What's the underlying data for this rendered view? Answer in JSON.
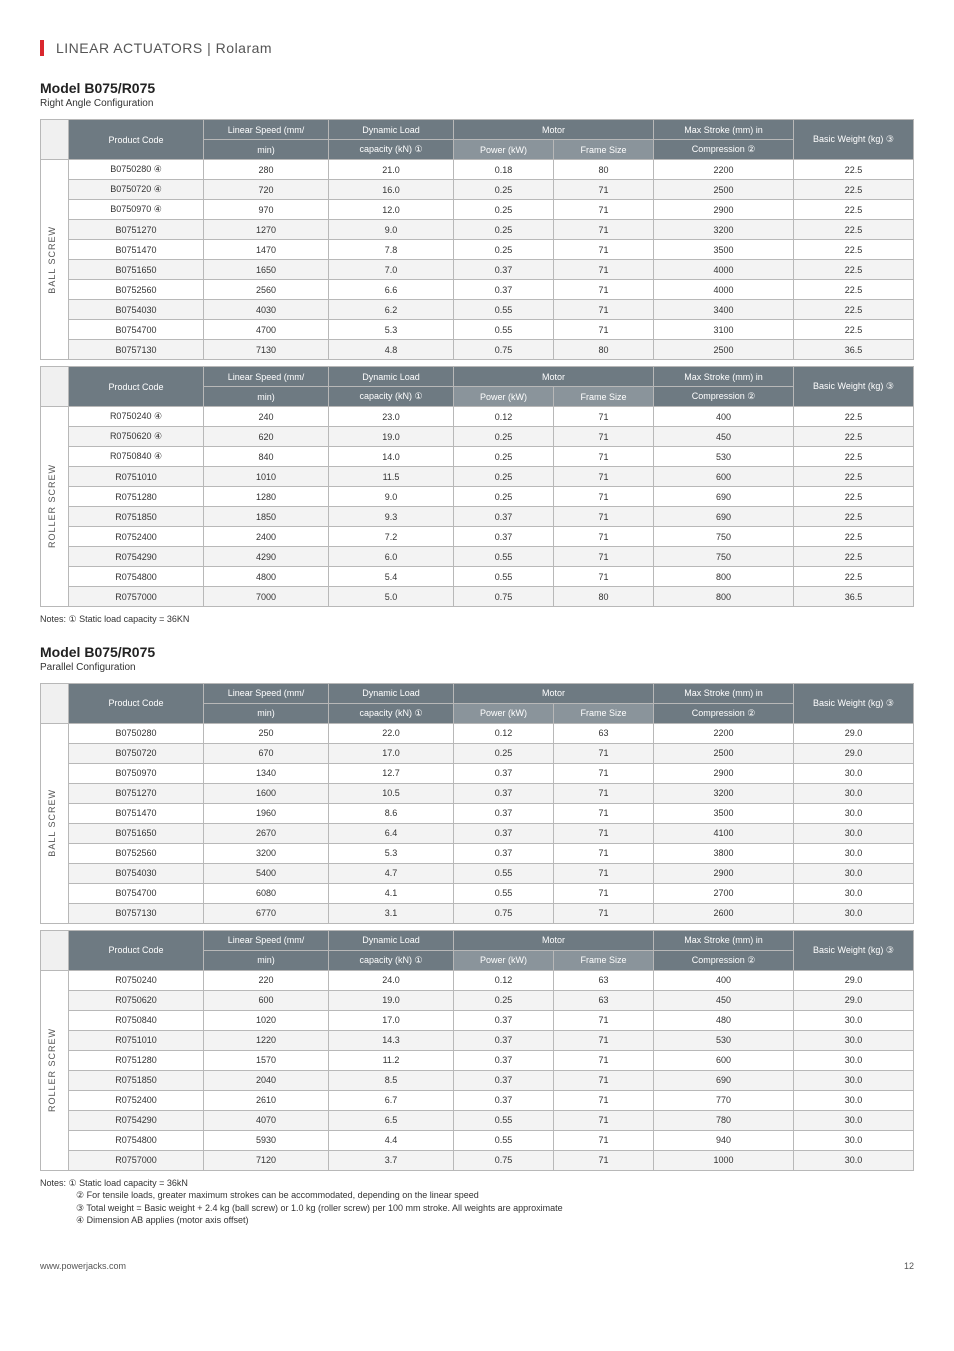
{
  "breadcrumb": {
    "l1": "LINEAR ACTUATORS",
    "sep": " | ",
    "l2": "Rolaram"
  },
  "sections": [
    {
      "title": "Model B075/R075",
      "sub": "Right Angle Configuration",
      "tables": [
        {
          "vlabel": "BALL SCREW",
          "rows": [
            [
              "B0750280 ④",
              "280",
              "21.0",
              "0.18",
              "80",
              "2200",
              "22.5"
            ],
            [
              "B0750720 ④",
              "720",
              "16.0",
              "0.25",
              "71",
              "2500",
              "22.5"
            ],
            [
              "B0750970 ④",
              "970",
              "12.0",
              "0.25",
              "71",
              "2900",
              "22.5"
            ],
            [
              "B0751270",
              "1270",
              "9.0",
              "0.25",
              "71",
              "3200",
              "22.5"
            ],
            [
              "B0751470",
              "1470",
              "7.8",
              "0.25",
              "71",
              "3500",
              "22.5"
            ],
            [
              "B0751650",
              "1650",
              "7.0",
              "0.37",
              "71",
              "4000",
              "22.5"
            ],
            [
              "B0752560",
              "2560",
              "6.6",
              "0.37",
              "71",
              "4000",
              "22.5"
            ],
            [
              "B0754030",
              "4030",
              "6.2",
              "0.55",
              "71",
              "3400",
              "22.5"
            ],
            [
              "B0754700",
              "4700",
              "5.3",
              "0.55",
              "71",
              "3100",
              "22.5"
            ],
            [
              "B0757130",
              "7130",
              "4.8",
              "0.75",
              "80",
              "2500",
              "36.5"
            ]
          ]
        },
        {
          "vlabel": "ROLLER SCREW",
          "rows": [
            [
              "R0750240 ④",
              "240",
              "23.0",
              "0.12",
              "71",
              "400",
              "22.5"
            ],
            [
              "R0750620 ④",
              "620",
              "19.0",
              "0.25",
              "71",
              "450",
              "22.5"
            ],
            [
              "R0750840 ④",
              "840",
              "14.0",
              "0.25",
              "71",
              "530",
              "22.5"
            ],
            [
              "R0751010",
              "1010",
              "11.5",
              "0.25",
              "71",
              "600",
              "22.5"
            ],
            [
              "R0751280",
              "1280",
              "9.0",
              "0.25",
              "71",
              "690",
              "22.5"
            ],
            [
              "R0751850",
              "1850",
              "9.3",
              "0.37",
              "71",
              "690",
              "22.5"
            ],
            [
              "R0752400",
              "2400",
              "7.2",
              "0.37",
              "71",
              "750",
              "22.5"
            ],
            [
              "R0754290",
              "4290",
              "6.0",
              "0.55",
              "71",
              "750",
              "22.5"
            ],
            [
              "R0754800",
              "4800",
              "5.4",
              "0.55",
              "71",
              "800",
              "22.5"
            ],
            [
              "R0757000",
              "7000",
              "5.0",
              "0.75",
              "80",
              "800",
              "36.5"
            ]
          ]
        }
      ],
      "notes": [
        "Notes:  ① Static load capacity = 36KN"
      ]
    },
    {
      "title": "Model B075/R075",
      "sub": "Parallel Configuration",
      "tables": [
        {
          "vlabel": "BALL SCREW",
          "rows": [
            [
              "B0750280",
              "250",
              "22.0",
              "0.12",
              "63",
              "2200",
              "29.0"
            ],
            [
              "B0750720",
              "670",
              "17.0",
              "0.25",
              "71",
              "2500",
              "29.0"
            ],
            [
              "B0750970",
              "1340",
              "12.7",
              "0.37",
              "71",
              "2900",
              "30.0"
            ],
            [
              "B0751270",
              "1600",
              "10.5",
              "0.37",
              "71",
              "3200",
              "30.0"
            ],
            [
              "B0751470",
              "1960",
              "8.6",
              "0.37",
              "71",
              "3500",
              "30.0"
            ],
            [
              "B0751650",
              "2670",
              "6.4",
              "0.37",
              "71",
              "4100",
              "30.0"
            ],
            [
              "B0752560",
              "3200",
              "5.3",
              "0.37",
              "71",
              "3800",
              "30.0"
            ],
            [
              "B0754030",
              "5400",
              "4.7",
              "0.55",
              "71",
              "2900",
              "30.0"
            ],
            [
              "B0754700",
              "6080",
              "4.1",
              "0.55",
              "71",
              "2700",
              "30.0"
            ],
            [
              "B0757130",
              "6770",
              "3.1",
              "0.75",
              "71",
              "2600",
              "30.0"
            ]
          ]
        },
        {
          "vlabel": "ROLLER SCREW",
          "rows": [
            [
              "R0750240",
              "220",
              "24.0",
              "0.12",
              "63",
              "400",
              "29.0"
            ],
            [
              "R0750620",
              "600",
              "19.0",
              "0.25",
              "63",
              "450",
              "29.0"
            ],
            [
              "R0750840",
              "1020",
              "17.0",
              "0.37",
              "71",
              "480",
              "30.0"
            ],
            [
              "R0751010",
              "1220",
              "14.3",
              "0.37",
              "71",
              "530",
              "30.0"
            ],
            [
              "R0751280",
              "1570",
              "11.2",
              "0.37",
              "71",
              "600",
              "30.0"
            ],
            [
              "R0751850",
              "2040",
              "8.5",
              "0.37",
              "71",
              "690",
              "30.0"
            ],
            [
              "R0752400",
              "2610",
              "6.7",
              "0.37",
              "71",
              "770",
              "30.0"
            ],
            [
              "R0754290",
              "4070",
              "6.5",
              "0.55",
              "71",
              "780",
              "30.0"
            ],
            [
              "R0754800",
              "5930",
              "4.4",
              "0.55",
              "71",
              "940",
              "30.0"
            ],
            [
              "R0757000",
              "7120",
              "3.7",
              "0.75",
              "71",
              "1000",
              "30.0"
            ]
          ]
        }
      ],
      "notes": [
        "Notes:  ① Static load capacity = 36kN",
        "② For tensile loads, greater maximum strokes can be accommodated, depending on the linear speed",
        "③ Total weight = Basic weight + 2.4 kg (ball screw) or 1.0 kg (roller screw) per 100 mm stroke. All weights are approximate",
        "④ Dimension AB applies (motor axis offset)"
      ]
    }
  ],
  "headers": {
    "pc": "Product Code",
    "ls1": "Linear Speed (mm/",
    "ls2": "min)",
    "dl1": "Dynamic Load",
    "dl2": "capacity (kN) ①",
    "mot": "Motor",
    "pw": "Power (kW)",
    "fs": "Frame Size",
    "ms1": "Max Stroke (mm) in",
    "ms2": "Compression ②",
    "bw": "Basic Weight (kg) ③"
  },
  "footer": {
    "url": "www.powerjacks.com",
    "page": "12"
  }
}
